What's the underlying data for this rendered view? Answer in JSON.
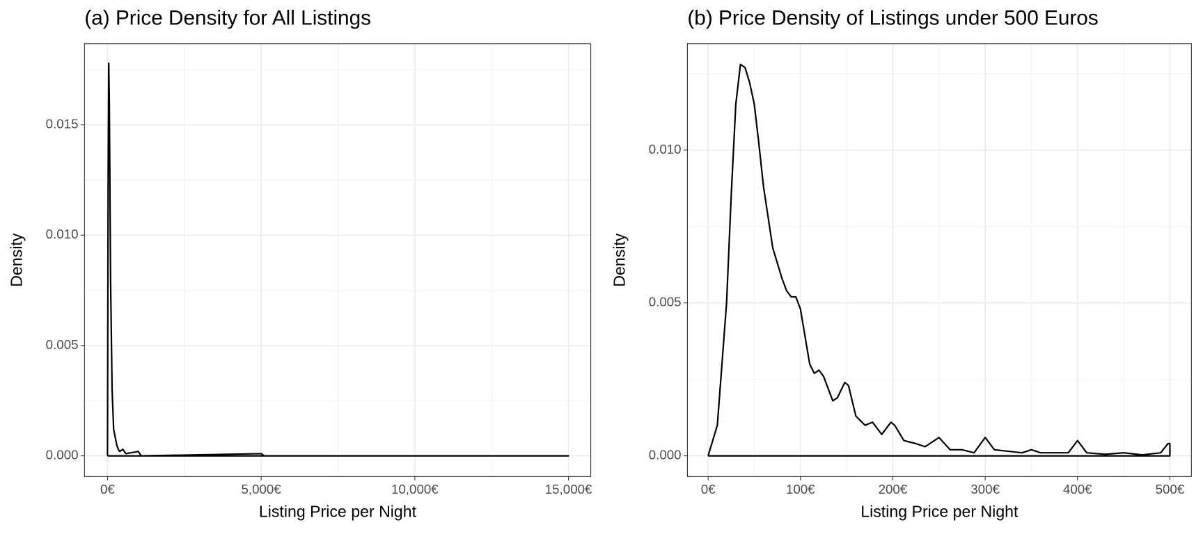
{
  "chart_data": [
    {
      "type": "line",
      "title": "(a) Price Density for All Listings",
      "x_label": "Listing Price per Night",
      "y_label": "Density",
      "x": [
        0,
        20,
        40,
        60,
        100,
        150,
        200,
        300,
        350,
        400,
        500,
        600,
        1000,
        1100,
        5000,
        5100,
        15000,
        0
      ],
      "values": [
        0,
        0.012,
        0.0178,
        0.016,
        0.008,
        0.003,
        0.0012,
        0.0005,
        0.0003,
        0.0002,
        0.0003,
        0.0001,
        0.0002,
        0,
        0.0001,
        0,
        0,
        0
      ],
      "color": "#000000",
      "xlim": [
        -749,
        15724
      ],
      "ylim": [
        -0.000937,
        0.01868
      ],
      "xticks": [
        {
          "value": 0,
          "label": "0€"
        },
        {
          "value": 5000,
          "label": "5,000€"
        },
        {
          "value": 10000,
          "label": "10,000€"
        },
        {
          "value": 15000,
          "label": "15,000€"
        }
      ],
      "yticks": [
        {
          "value": 0,
          "label": "0.000"
        },
        0.005,
        {
          "value": 0.01,
          "label": "0.010"
        },
        0.015
      ],
      "grid": true
    },
    {
      "type": "line",
      "title": "(b) Price Density of Listings under 500 Euros",
      "x_label": "Listing Price per Night",
      "y_label": "Density",
      "x": [
        0,
        10,
        20,
        25,
        30,
        35,
        40,
        45,
        50,
        55,
        60,
        70,
        80,
        85,
        90,
        95,
        100,
        110,
        115,
        120,
        125,
        135,
        140,
        148,
        152,
        160,
        170,
        178,
        188,
        198,
        202,
        212,
        225,
        235,
        250,
        262,
        275,
        288,
        300,
        310,
        340,
        350,
        360,
        375,
        390,
        400,
        410,
        430,
        450,
        470,
        490,
        498,
        500,
        500,
        0
      ],
      "values": [
        0,
        0.001,
        0.005,
        0.0085,
        0.0115,
        0.0128,
        0.0127,
        0.0122,
        0.0115,
        0.0102,
        0.0088,
        0.0068,
        0.0058,
        0.0054,
        0.0052,
        0.0052,
        0.0048,
        0.003,
        0.0027,
        0.0028,
        0.0026,
        0.0018,
        0.0019,
        0.0024,
        0.0023,
        0.0013,
        0.001,
        0.0011,
        0.0007,
        0.0011,
        0.001,
        0.0005,
        0.0004,
        0.0003,
        0.0006,
        0.0002,
        0.0002,
        0.0001,
        0.0006,
        0.0002,
        0.0001,
        0.0002,
        0.0001,
        0.0001,
        0.0001,
        0.0005,
        0.0001,
        5e-05,
        0.0001,
        3e-05,
        0.0001,
        0.0004,
        0.0004,
        0,
        0
      ],
      "color": "#000000",
      "xlim": [
        -22.4,
        523.3
      ],
      "ylim": [
        -0.000677,
        0.01348
      ],
      "xticks": [
        {
          "value": 0,
          "label": "0€"
        },
        {
          "value": 100,
          "label": "100€"
        },
        {
          "value": 200,
          "label": "200€"
        },
        {
          "value": 300,
          "label": "300€"
        },
        {
          "value": 400,
          "label": "400€"
        },
        {
          "value": 500,
          "label": "500€"
        }
      ],
      "yticks": [
        {
          "value": 0,
          "label": "0.000"
        },
        0.005,
        {
          "value": 0.01,
          "label": "0.010"
        }
      ],
      "grid": true
    }
  ]
}
